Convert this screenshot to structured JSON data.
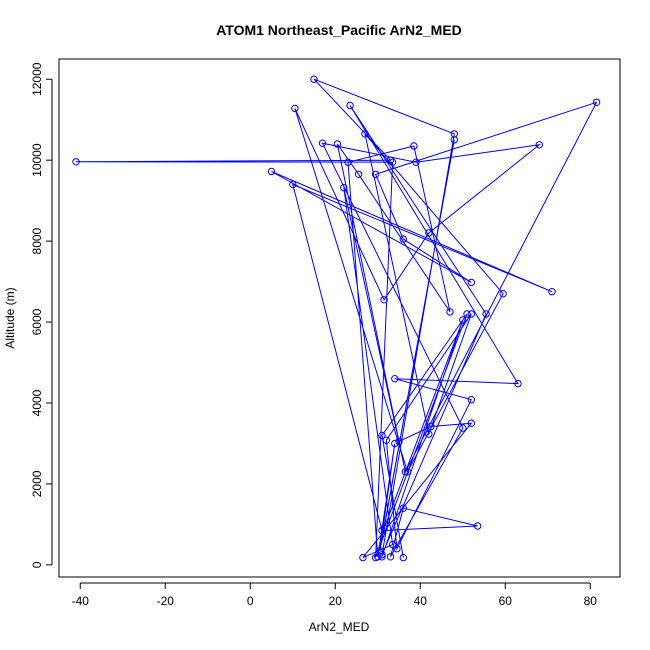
{
  "chart_data": {
    "type": "scatter",
    "title": "ATOM1 Northeast_Pacific ArN2_MED",
    "xlabel": "ArN2_MED",
    "ylabel": "Altitude (m)",
    "xlim": [
      -45,
      87
    ],
    "ylim": [
      -300,
      12500
    ],
    "x_ticks": [
      -40,
      -20,
      0,
      20,
      40,
      60,
      80
    ],
    "y_ticks": [
      0,
      2000,
      4000,
      6000,
      8000,
      10000,
      12000
    ],
    "x_tick_labels": [
      "-40",
      "-20",
      "0",
      "20",
      "40",
      "60",
      "80"
    ],
    "y_tick_labels": [
      "0",
      "2000",
      "4000",
      "6000",
      "8000",
      "10000",
      "12000"
    ],
    "grid": false,
    "series_color": "#0000ff",
    "series": [
      {
        "points": [
          [
            36,
            180
          ],
          [
            31,
            3200
          ],
          [
            51,
            6200
          ],
          [
            29.5,
            180
          ],
          [
            33.5,
            9950
          ],
          [
            -41,
            9960
          ],
          [
            33,
            10000
          ],
          [
            15,
            12000
          ],
          [
            48,
            10650
          ],
          [
            31,
            250
          ],
          [
            55.5,
            6200
          ],
          [
            23.5,
            11350
          ],
          [
            63,
            4480
          ],
          [
            34,
            4600
          ],
          [
            52,
            4080
          ],
          [
            34.5,
            400
          ],
          [
            32,
            3080
          ],
          [
            52,
            6200
          ],
          [
            42,
            3230
          ],
          [
            27,
            10650
          ],
          [
            59.5,
            6700
          ],
          [
            37,
            2300
          ],
          [
            10.5,
            11280
          ],
          [
            31.5,
            6550
          ],
          [
            42,
            8200
          ],
          [
            68,
            10380
          ],
          [
            39,
            9950
          ],
          [
            17,
            10420
          ],
          [
            50,
            3380
          ],
          [
            33,
            200
          ],
          [
            36,
            1400
          ],
          [
            53.5,
            960
          ],
          [
            31,
            850
          ],
          [
            10,
            9400
          ],
          [
            71,
            6750
          ],
          [
            5,
            9720
          ],
          [
            52,
            6980
          ],
          [
            36,
            8050
          ],
          [
            29.5,
            9650
          ],
          [
            81.5,
            11430
          ],
          [
            36.5,
            2300
          ],
          [
            22,
            9320
          ],
          [
            33.5,
            500
          ],
          [
            26.5,
            180
          ],
          [
            52,
            3500
          ],
          [
            42.5,
            3420
          ],
          [
            35,
            3050
          ],
          [
            20.5,
            10400
          ],
          [
            25.5,
            9650
          ],
          [
            47,
            6250
          ],
          [
            38.5,
            10350
          ],
          [
            23,
            9950
          ],
          [
            30,
            200
          ],
          [
            34,
            3000
          ],
          [
            30.5,
            350
          ],
          [
            48,
            10500
          ],
          [
            31.5,
            900
          ],
          [
            50,
            6050
          ],
          [
            31,
            200
          ]
        ]
      }
    ]
  }
}
